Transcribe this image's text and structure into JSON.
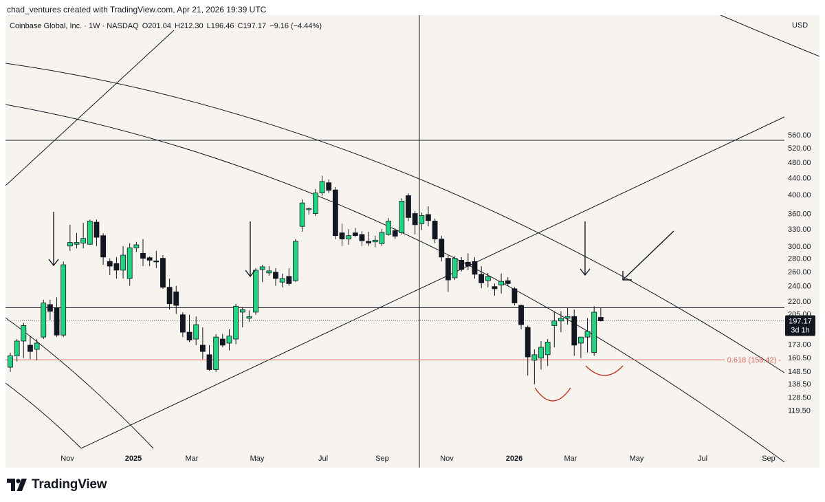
{
  "header": {
    "credit": "chad_ventures created with TradingView.com, Apr 21, 2026 19:39 UTC"
  },
  "legend": {
    "symbol": "Coinbase Global, Inc. · 1W · NASDAQ",
    "open": "O201.04",
    "high": "H212.30",
    "low": "L196.46",
    "close": "C197.17",
    "change": "−9.16 (−4.44%)"
  },
  "branding": {
    "name": "TradingView"
  },
  "colors": {
    "up": "#22d381",
    "down": "#131722",
    "fib": "#e0605a",
    "arc": "#c0392b",
    "bg": "#f7f4ef"
  },
  "chart_data": {
    "type": "candlestick",
    "title": "Coinbase Global, Inc. · 1W · NASDAQ",
    "currency": "USD",
    "y_scale": "log",
    "ylim": [
      112,
      600
    ],
    "y_ticks": [
      "560.00",
      "520.00",
      "480.00",
      "440.00",
      "400.00",
      "360.00",
      "330.00",
      "300.00",
      "280.00",
      "260.00",
      "240.00",
      "220.00",
      "205.00",
      "173.00",
      "160.50",
      "148.50",
      "138.50",
      "128.50",
      "119.50"
    ],
    "x_labels": [
      "Nov",
      "2025",
      "Mar",
      "May",
      "Jul",
      "Sep",
      "Nov",
      "2026",
      "Mar",
      "May",
      "Jul",
      "Sep"
    ],
    "last_price": {
      "label": "197.17",
      "countdown": "3d 1h",
      "value": 197.17
    },
    "horizontal_levels": [
      {
        "value": 543,
        "label": ""
      },
      {
        "value": 212.3,
        "label": ""
      }
    ],
    "fib_level": {
      "value": 158.42,
      "label": "0.618 (158.42)"
    },
    "candles": [
      {
        "o": 152,
        "h": 165,
        "l": 148,
        "c": 162
      },
      {
        "o": 162,
        "h": 178,
        "l": 157,
        "c": 176
      },
      {
        "o": 176,
        "h": 195,
        "l": 160,
        "c": 192
      },
      {
        "o": 172,
        "h": 181,
        "l": 159,
        "c": 166
      },
      {
        "o": 168,
        "h": 178,
        "l": 158,
        "c": 174
      },
      {
        "o": 180,
        "h": 222,
        "l": 178,
        "c": 218
      },
      {
        "o": 216,
        "h": 222,
        "l": 198,
        "c": 208
      },
      {
        "o": 212,
        "h": 225,
        "l": 180,
        "c": 182
      },
      {
        "o": 182,
        "h": 275,
        "l": 180,
        "c": 270
      },
      {
        "o": 300,
        "h": 338,
        "l": 292,
        "c": 306
      },
      {
        "o": 303,
        "h": 323,
        "l": 296,
        "c": 306
      },
      {
        "o": 305,
        "h": 342,
        "l": 296,
        "c": 313
      },
      {
        "o": 303,
        "h": 348,
        "l": 302,
        "c": 345
      },
      {
        "o": 343,
        "h": 348,
        "l": 300,
        "c": 315
      },
      {
        "o": 318,
        "h": 322,
        "l": 270,
        "c": 282
      },
      {
        "o": 275,
        "h": 280,
        "l": 255,
        "c": 268
      },
      {
        "o": 272,
        "h": 282,
        "l": 250,
        "c": 262
      },
      {
        "o": 262,
        "h": 300,
        "l": 250,
        "c": 285
      },
      {
        "o": 250,
        "h": 305,
        "l": 240,
        "c": 297
      },
      {
        "o": 297,
        "h": 307,
        "l": 290,
        "c": 302
      },
      {
        "o": 288,
        "h": 312,
        "l": 268,
        "c": 280
      },
      {
        "o": 281,
        "h": 283,
        "l": 268,
        "c": 277
      },
      {
        "o": 276,
        "h": 292,
        "l": 265,
        "c": 275
      },
      {
        "o": 280,
        "h": 285,
        "l": 236,
        "c": 238
      },
      {
        "o": 238,
        "h": 250,
        "l": 210,
        "c": 217
      },
      {
        "o": 232,
        "h": 240,
        "l": 205,
        "c": 215
      },
      {
        "o": 204,
        "h": 207,
        "l": 180,
        "c": 185
      },
      {
        "o": 185,
        "h": 204,
        "l": 175,
        "c": 177
      },
      {
        "o": 178,
        "h": 202,
        "l": 172,
        "c": 193
      },
      {
        "o": 172,
        "h": 190,
        "l": 159,
        "c": 166
      },
      {
        "o": 163,
        "h": 172,
        "l": 149,
        "c": 150
      },
      {
        "o": 150,
        "h": 183,
        "l": 148,
        "c": 180
      },
      {
        "o": 178,
        "h": 183,
        "l": 170,
        "c": 172
      },
      {
        "o": 174,
        "h": 188,
        "l": 167,
        "c": 181
      },
      {
        "o": 178,
        "h": 217,
        "l": 173,
        "c": 214
      },
      {
        "o": 207,
        "h": 213,
        "l": 190,
        "c": 210
      },
      {
        "o": 200,
        "h": 209,
        "l": 196,
        "c": 202
      },
      {
        "o": 207,
        "h": 265,
        "l": 204,
        "c": 262
      },
      {
        "o": 263,
        "h": 270,
        "l": 245,
        "c": 267
      },
      {
        "o": 258,
        "h": 268,
        "l": 254,
        "c": 261
      },
      {
        "o": 259,
        "h": 265,
        "l": 240,
        "c": 250
      },
      {
        "o": 245,
        "h": 257,
        "l": 238,
        "c": 250
      },
      {
        "o": 253,
        "h": 265,
        "l": 240,
        "c": 243
      },
      {
        "o": 247,
        "h": 312,
        "l": 245,
        "c": 308
      },
      {
        "o": 335,
        "h": 390,
        "l": 325,
        "c": 382
      },
      {
        "o": 368,
        "h": 373,
        "l": 358,
        "c": 370
      },
      {
        "o": 360,
        "h": 413,
        "l": 355,
        "c": 404
      },
      {
        "o": 404,
        "h": 445,
        "l": 398,
        "c": 431
      },
      {
        "o": 428,
        "h": 436,
        "l": 404,
        "c": 410
      },
      {
        "o": 411,
        "h": 418,
        "l": 312,
        "c": 318
      },
      {
        "o": 323,
        "h": 340,
        "l": 300,
        "c": 312
      },
      {
        "o": 312,
        "h": 330,
        "l": 302,
        "c": 318
      },
      {
        "o": 323,
        "h": 332,
        "l": 316,
        "c": 318
      },
      {
        "o": 320,
        "h": 326,
        "l": 300,
        "c": 309
      },
      {
        "o": 308,
        "h": 325,
        "l": 300,
        "c": 305
      },
      {
        "o": 307,
        "h": 318,
        "l": 298,
        "c": 310
      },
      {
        "o": 304,
        "h": 330,
        "l": 300,
        "c": 324
      },
      {
        "o": 320,
        "h": 351,
        "l": 318,
        "c": 345
      },
      {
        "o": 327,
        "h": 331,
        "l": 312,
        "c": 317
      },
      {
        "o": 323,
        "h": 392,
        "l": 320,
        "c": 386
      },
      {
        "o": 398,
        "h": 403,
        "l": 345,
        "c": 352
      },
      {
        "o": 360,
        "h": 365,
        "l": 320,
        "c": 338
      },
      {
        "o": 340,
        "h": 362,
        "l": 328,
        "c": 356
      },
      {
        "o": 358,
        "h": 375,
        "l": 335,
        "c": 346
      },
      {
        "o": 345,
        "h": 350,
        "l": 305,
        "c": 312
      },
      {
        "o": 312,
        "h": 318,
        "l": 275,
        "c": 282
      },
      {
        "o": 280,
        "h": 285,
        "l": 232,
        "c": 248
      },
      {
        "o": 251,
        "h": 283,
        "l": 248,
        "c": 280
      },
      {
        "o": 277,
        "h": 282,
        "l": 260,
        "c": 263
      },
      {
        "o": 274,
        "h": 288,
        "l": 262,
        "c": 268
      },
      {
        "o": 275,
        "h": 282,
        "l": 250,
        "c": 256
      },
      {
        "o": 256,
        "h": 268,
        "l": 237,
        "c": 244
      },
      {
        "o": 247,
        "h": 258,
        "l": 238,
        "c": 253
      },
      {
        "o": 239,
        "h": 243,
        "l": 227,
        "c": 236
      },
      {
        "o": 241,
        "h": 257,
        "l": 230,
        "c": 246
      },
      {
        "o": 247,
        "h": 252,
        "l": 240,
        "c": 243
      },
      {
        "o": 236,
        "h": 238,
        "l": 215,
        "c": 218
      },
      {
        "o": 215,
        "h": 216,
        "l": 188,
        "c": 193
      },
      {
        "o": 190,
        "h": 192,
        "l": 145,
        "c": 161
      },
      {
        "o": 158,
        "h": 168,
        "l": 138,
        "c": 163
      },
      {
        "o": 160,
        "h": 176,
        "l": 150,
        "c": 170
      },
      {
        "o": 163,
        "h": 178,
        "l": 153,
        "c": 175
      },
      {
        "o": 192,
        "h": 208,
        "l": 170,
        "c": 197
      },
      {
        "o": 197,
        "h": 208,
        "l": 185,
        "c": 200
      },
      {
        "o": 200,
        "h": 212,
        "l": 193,
        "c": 202
      },
      {
        "o": 202,
        "h": 210,
        "l": 162,
        "c": 172
      },
      {
        "o": 174,
        "h": 180,
        "l": 160,
        "c": 180
      },
      {
        "o": 180,
        "h": 200,
        "l": 165,
        "c": 186
      },
      {
        "o": 165,
        "h": 214,
        "l": 162,
        "c": 207
      },
      {
        "o": 201.04,
        "h": 212.3,
        "l": 196.46,
        "c": 197.17
      }
    ]
  }
}
